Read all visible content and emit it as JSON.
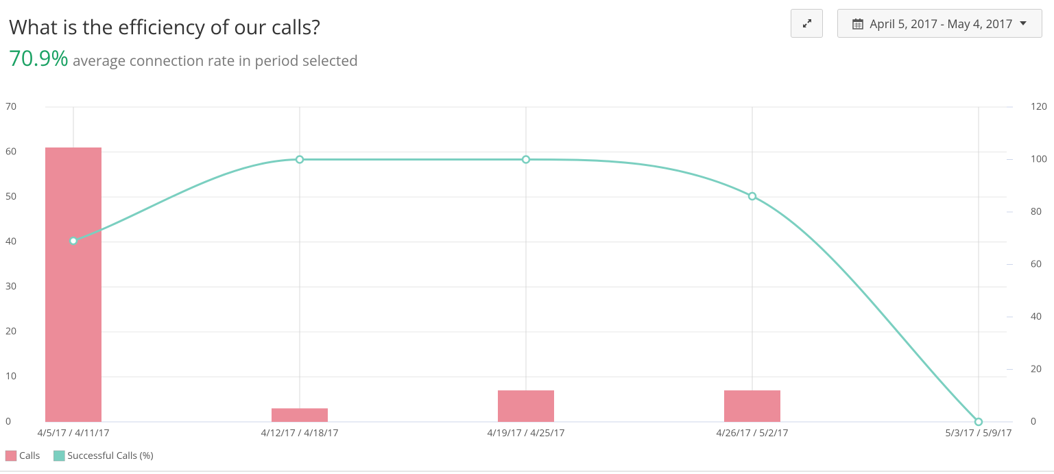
{
  "header": {
    "title": "What is the efficiency of our calls?",
    "kpi_value": "70.9%",
    "kpi_text": "average connection rate in period selected",
    "date_range": "April 5, 2017 - May 4, 2017"
  },
  "chart_data": {
    "type": "combo",
    "categories": [
      "4/5/17 / 4/11/17",
      "4/12/17 / 4/18/17",
      "4/19/17 / 4/25/17",
      "4/26/17 / 5/2/17",
      "5/3/17 / 5/9/17"
    ],
    "series": [
      {
        "name": "Calls",
        "type": "bar",
        "color": "#ec8c99",
        "values": [
          61,
          3,
          7,
          7,
          0
        ]
      },
      {
        "name": "Successful Calls (%)",
        "type": "line",
        "axis": "y2",
        "color": "#7acfc0",
        "values": [
          69,
          100,
          100,
          86,
          0
        ]
      }
    ],
    "ylim": [
      0,
      70
    ],
    "yticks": [
      0,
      10,
      20,
      30,
      40,
      50,
      60,
      70
    ],
    "y2lim": [
      0,
      120
    ],
    "y2ticks": [
      0,
      20,
      40,
      60,
      80,
      100,
      120
    ],
    "grid": true,
    "legend": "bottom-left"
  }
}
